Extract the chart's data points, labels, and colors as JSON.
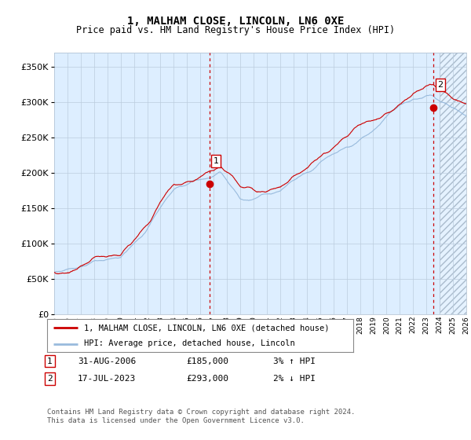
{
  "title": "1, MALHAM CLOSE, LINCOLN, LN6 0XE",
  "subtitle": "Price paid vs. HM Land Registry's House Price Index (HPI)",
  "ylim": [
    0,
    370000
  ],
  "yticks": [
    0,
    50000,
    100000,
    150000,
    200000,
    250000,
    300000,
    350000
  ],
  "xlim": [
    1995,
    2026
  ],
  "sale1_year": 2006.667,
  "sale1_price": 185000,
  "sale1_label": "1",
  "sale2_year": 2023.542,
  "sale2_price": 293000,
  "sale2_label": "2",
  "line_color_hpi": "#99bbdd",
  "line_color_price": "#cc0000",
  "dot_color": "#cc0000",
  "bg_color": "#ddeeff",
  "hatch_start": 2024,
  "grid_color": "#bbccdd",
  "legend_label1": "1, MALHAM CLOSE, LINCOLN, LN6 0XE (detached house)",
  "legend_label2": "HPI: Average price, detached house, Lincoln",
  "table_row1": [
    "1",
    "31-AUG-2006",
    "£185,000",
    "3% ↑ HPI"
  ],
  "table_row2": [
    "2",
    "17-JUL-2023",
    "£293,000",
    "2% ↓ HPI"
  ],
  "footer": "Contains HM Land Registry data © Crown copyright and database right 2024.\nThis data is licensed under the Open Government Licence v3.0."
}
